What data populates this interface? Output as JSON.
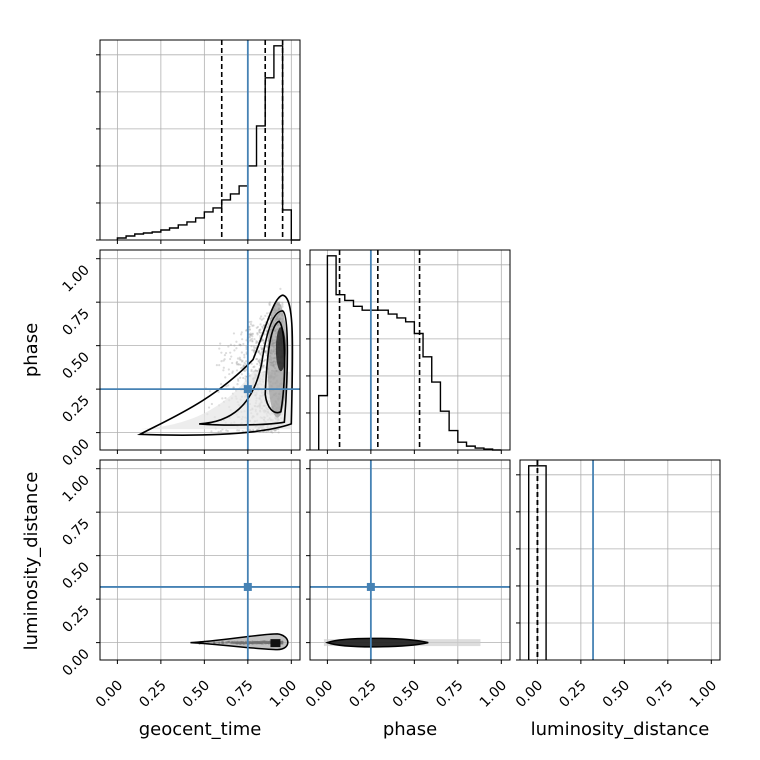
{
  "chart_data": {
    "type": "corner",
    "parameters": [
      "geocent_time",
      "phase",
      "luminosity_distance"
    ],
    "tick_values": [
      0,
      0.25,
      0.5,
      0.75,
      1.0
    ],
    "tick_labels": [
      "0.00",
      "0.25",
      "0.50",
      "0.75",
      "1.00"
    ],
    "axis_range": [
      -0.1,
      1.05
    ],
    "grid": true,
    "colors": {
      "truth": "#4682b4",
      "hist": "#000000",
      "quantile": "#000000",
      "scatter": "#9a9a9a"
    },
    "truths": [
      0.75,
      0.25,
      0.32
    ],
    "quantiles": [
      [
        0.6,
        0.85,
        0.95
      ],
      [
        0.07,
        0.29,
        0.53
      ],
      [
        0.0,
        0.0,
        0.0
      ]
    ],
    "hist_geocent_time": {
      "edges": [
        0.0,
        0.05,
        0.1,
        0.15,
        0.2,
        0.25,
        0.3,
        0.35,
        0.4,
        0.45,
        0.5,
        0.55,
        0.6,
        0.65,
        0.7,
        0.75,
        0.8,
        0.85,
        0.9,
        0.95,
        1.0,
        1.05
      ],
      "counts": [
        0.01,
        0.02,
        0.03,
        0.035,
        0.04,
        0.05,
        0.06,
        0.075,
        0.09,
        0.11,
        0.14,
        0.16,
        0.2,
        0.23,
        0.27,
        0.37,
        0.57,
        0.81,
        0.97,
        0.15,
        0.0
      ]
    },
    "hist_phase": {
      "edges": [
        -0.05,
        0.0,
        0.05,
        0.1,
        0.15,
        0.2,
        0.25,
        0.3,
        0.35,
        0.4,
        0.45,
        0.5,
        0.55,
        0.6,
        0.65,
        0.7,
        0.75,
        0.8,
        0.85,
        0.9,
        0.95,
        1.0
      ],
      "counts": [
        0.28,
        1.0,
        0.8,
        0.77,
        0.74,
        0.72,
        0.72,
        0.72,
        0.7,
        0.68,
        0.66,
        0.6,
        0.48,
        0.35,
        0.2,
        0.1,
        0.04,
        0.02,
        0.01,
        0.005,
        0.0
      ]
    },
    "hist_luminosity_distance": {
      "edges": [
        -0.05,
        0.0,
        0.05
      ],
      "counts": [
        1.0,
        1.0
      ]
    }
  }
}
